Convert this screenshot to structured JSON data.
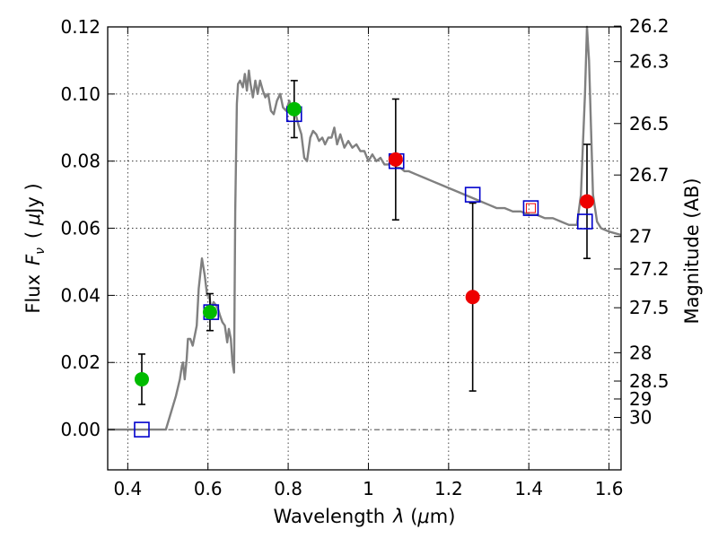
{
  "chart_data": {
    "type": "scatter",
    "title": "",
    "xlabel_text": "Wavelength",
    "xlabel_symbol": "λ",
    "xlabel_unit_open": " (",
    "xlabel_unit_mu": "μ",
    "xlabel_unit_close": "m)",
    "ylabel_text": "Flux",
    "ylabel_symbol": "F",
    "ylabel_subscript": "ν",
    "ylabel_unit_open": "( ",
    "ylabel_unit_mu": "μ",
    "ylabel_unit_close": "Jy )",
    "y2label": "Magnitude (AB)",
    "xlim": [
      0.35,
      1.63
    ],
    "ylim": [
      -0.012,
      0.12
    ],
    "grid": true,
    "legend": "none",
    "x_ticks": [
      {
        "value": 0.4,
        "label": "0.4"
      },
      {
        "value": 0.6,
        "label": "0.6"
      },
      {
        "value": 0.8,
        "label": "0.8"
      },
      {
        "value": 1.0,
        "label": "1"
      },
      {
        "value": 1.2,
        "label": "1.2"
      },
      {
        "value": 1.4,
        "label": "1.4"
      },
      {
        "value": 1.6,
        "label": "1.6"
      }
    ],
    "y_ticks": [
      {
        "value": 0.0,
        "label": "0.00"
      },
      {
        "value": 0.02,
        "label": "0.02"
      },
      {
        "value": 0.04,
        "label": "0.04"
      },
      {
        "value": 0.06,
        "label": "0.06"
      },
      {
        "value": 0.08,
        "label": "0.08"
      },
      {
        "value": 0.1,
        "label": "0.10"
      },
      {
        "value": 0.12,
        "label": "0.12"
      }
    ],
    "mag_ticks": [
      {
        "mag": 26.2,
        "label": "26.2"
      },
      {
        "mag": 26.3,
        "label": "26.3"
      },
      {
        "mag": 26.5,
        "label": "26.5"
      },
      {
        "mag": 26.7,
        "label": "26.7"
      },
      {
        "mag": 27.0,
        "label": "27"
      },
      {
        "mag": 27.2,
        "label": "27.2"
      },
      {
        "mag": 27.5,
        "label": "27.5"
      },
      {
        "mag": 28.0,
        "label": "28"
      },
      {
        "mag": 28.5,
        "label": "28.5"
      },
      {
        "mag": 29.0,
        "label": "29"
      },
      {
        "mag": 30.0,
        "label": "30"
      }
    ],
    "model_sed": {
      "color": "#808080",
      "x": [
        0.35,
        0.495,
        0.505,
        0.52,
        0.53,
        0.535,
        0.538,
        0.542,
        0.547,
        0.55,
        0.556,
        0.562,
        0.567,
        0.572,
        0.577,
        0.585,
        0.592,
        0.598,
        0.603,
        0.608,
        0.614,
        0.62,
        0.625,
        0.63,
        0.636,
        0.642,
        0.648,
        0.652,
        0.657,
        0.661,
        0.665,
        0.668,
        0.672,
        0.675,
        0.68,
        0.687,
        0.692,
        0.697,
        0.702,
        0.706,
        0.712,
        0.718,
        0.724,
        0.73,
        0.737,
        0.743,
        0.75,
        0.757,
        0.764,
        0.772,
        0.78,
        0.787,
        0.795,
        0.803,
        0.81,
        0.817,
        0.825,
        0.833,
        0.84,
        0.847,
        0.855,
        0.862,
        0.87,
        0.877,
        0.885,
        0.892,
        0.9,
        0.908,
        0.915,
        0.922,
        0.93,
        0.94,
        0.95,
        0.96,
        0.97,
        0.98,
        0.99,
        1.0,
        1.01,
        1.02,
        1.03,
        1.04,
        1.05,
        1.06,
        1.07,
        1.08,
        1.09,
        1.1,
        1.12,
        1.14,
        1.16,
        1.18,
        1.2,
        1.22,
        1.24,
        1.26,
        1.28,
        1.3,
        1.32,
        1.34,
        1.36,
        1.38,
        1.4,
        1.42,
        1.44,
        1.46,
        1.48,
        1.5,
        1.52,
        1.53,
        1.535,
        1.54,
        1.545,
        1.55,
        1.555,
        1.56,
        1.57,
        1.58,
        1.6,
        1.63
      ],
      "y": [
        0.0,
        0.0,
        0.004,
        0.01,
        0.015,
        0.019,
        0.02,
        0.015,
        0.021,
        0.027,
        0.027,
        0.025,
        0.028,
        0.031,
        0.042,
        0.051,
        0.046,
        0.04,
        0.04,
        0.036,
        0.038,
        0.037,
        0.036,
        0.034,
        0.032,
        0.031,
        0.026,
        0.03,
        0.027,
        0.02,
        0.017,
        0.065,
        0.097,
        0.103,
        0.104,
        0.102,
        0.106,
        0.101,
        0.107,
        0.103,
        0.099,
        0.104,
        0.1,
        0.104,
        0.101,
        0.099,
        0.1,
        0.095,
        0.094,
        0.098,
        0.1,
        0.096,
        0.095,
        0.098,
        0.094,
        0.095,
        0.091,
        0.088,
        0.081,
        0.08,
        0.087,
        0.089,
        0.088,
        0.086,
        0.087,
        0.085,
        0.087,
        0.087,
        0.09,
        0.085,
        0.088,
        0.084,
        0.086,
        0.084,
        0.085,
        0.083,
        0.083,
        0.08,
        0.082,
        0.08,
        0.081,
        0.079,
        0.079,
        0.08,
        0.078,
        0.078,
        0.077,
        0.077,
        0.076,
        0.075,
        0.074,
        0.073,
        0.072,
        0.071,
        0.07,
        0.069,
        0.068,
        0.067,
        0.066,
        0.066,
        0.065,
        0.065,
        0.064,
        0.064,
        0.063,
        0.063,
        0.062,
        0.061,
        0.061,
        0.07,
        0.085,
        0.1,
        0.12,
        0.11,
        0.09,
        0.07,
        0.062,
        0.06,
        0.059,
        0.058
      ]
    },
    "model_points": {
      "color": "#0000cc",
      "marker": "open-square",
      "x": [
        0.435,
        0.608,
        0.815,
        1.07,
        1.26,
        1.405,
        1.54
      ],
      "y": [
        0.0,
        0.035,
        0.094,
        0.08,
        0.07,
        0.066,
        0.062
      ]
    },
    "red_points_inside": [
      1.405
    ],
    "series": [
      {
        "color": "#00bb00",
        "x": [
          0.435,
          0.605,
          0.815
        ],
        "y": [
          0.015,
          0.035,
          0.0955
        ],
        "yerr_low": [
          0.0075,
          0.0055,
          0.0085
        ],
        "yerr_high": [
          0.0075,
          0.0055,
          0.0085
        ]
      },
      {
        "color": "#ee0000",
        "x": [
          1.068,
          1.26,
          1.545
        ],
        "y": [
          0.0805,
          0.0395,
          0.068
        ],
        "yerr_low": [
          0.018,
          0.028,
          0.017
        ],
        "yerr_high": [
          0.018,
          0.028,
          0.017
        ]
      }
    ]
  }
}
